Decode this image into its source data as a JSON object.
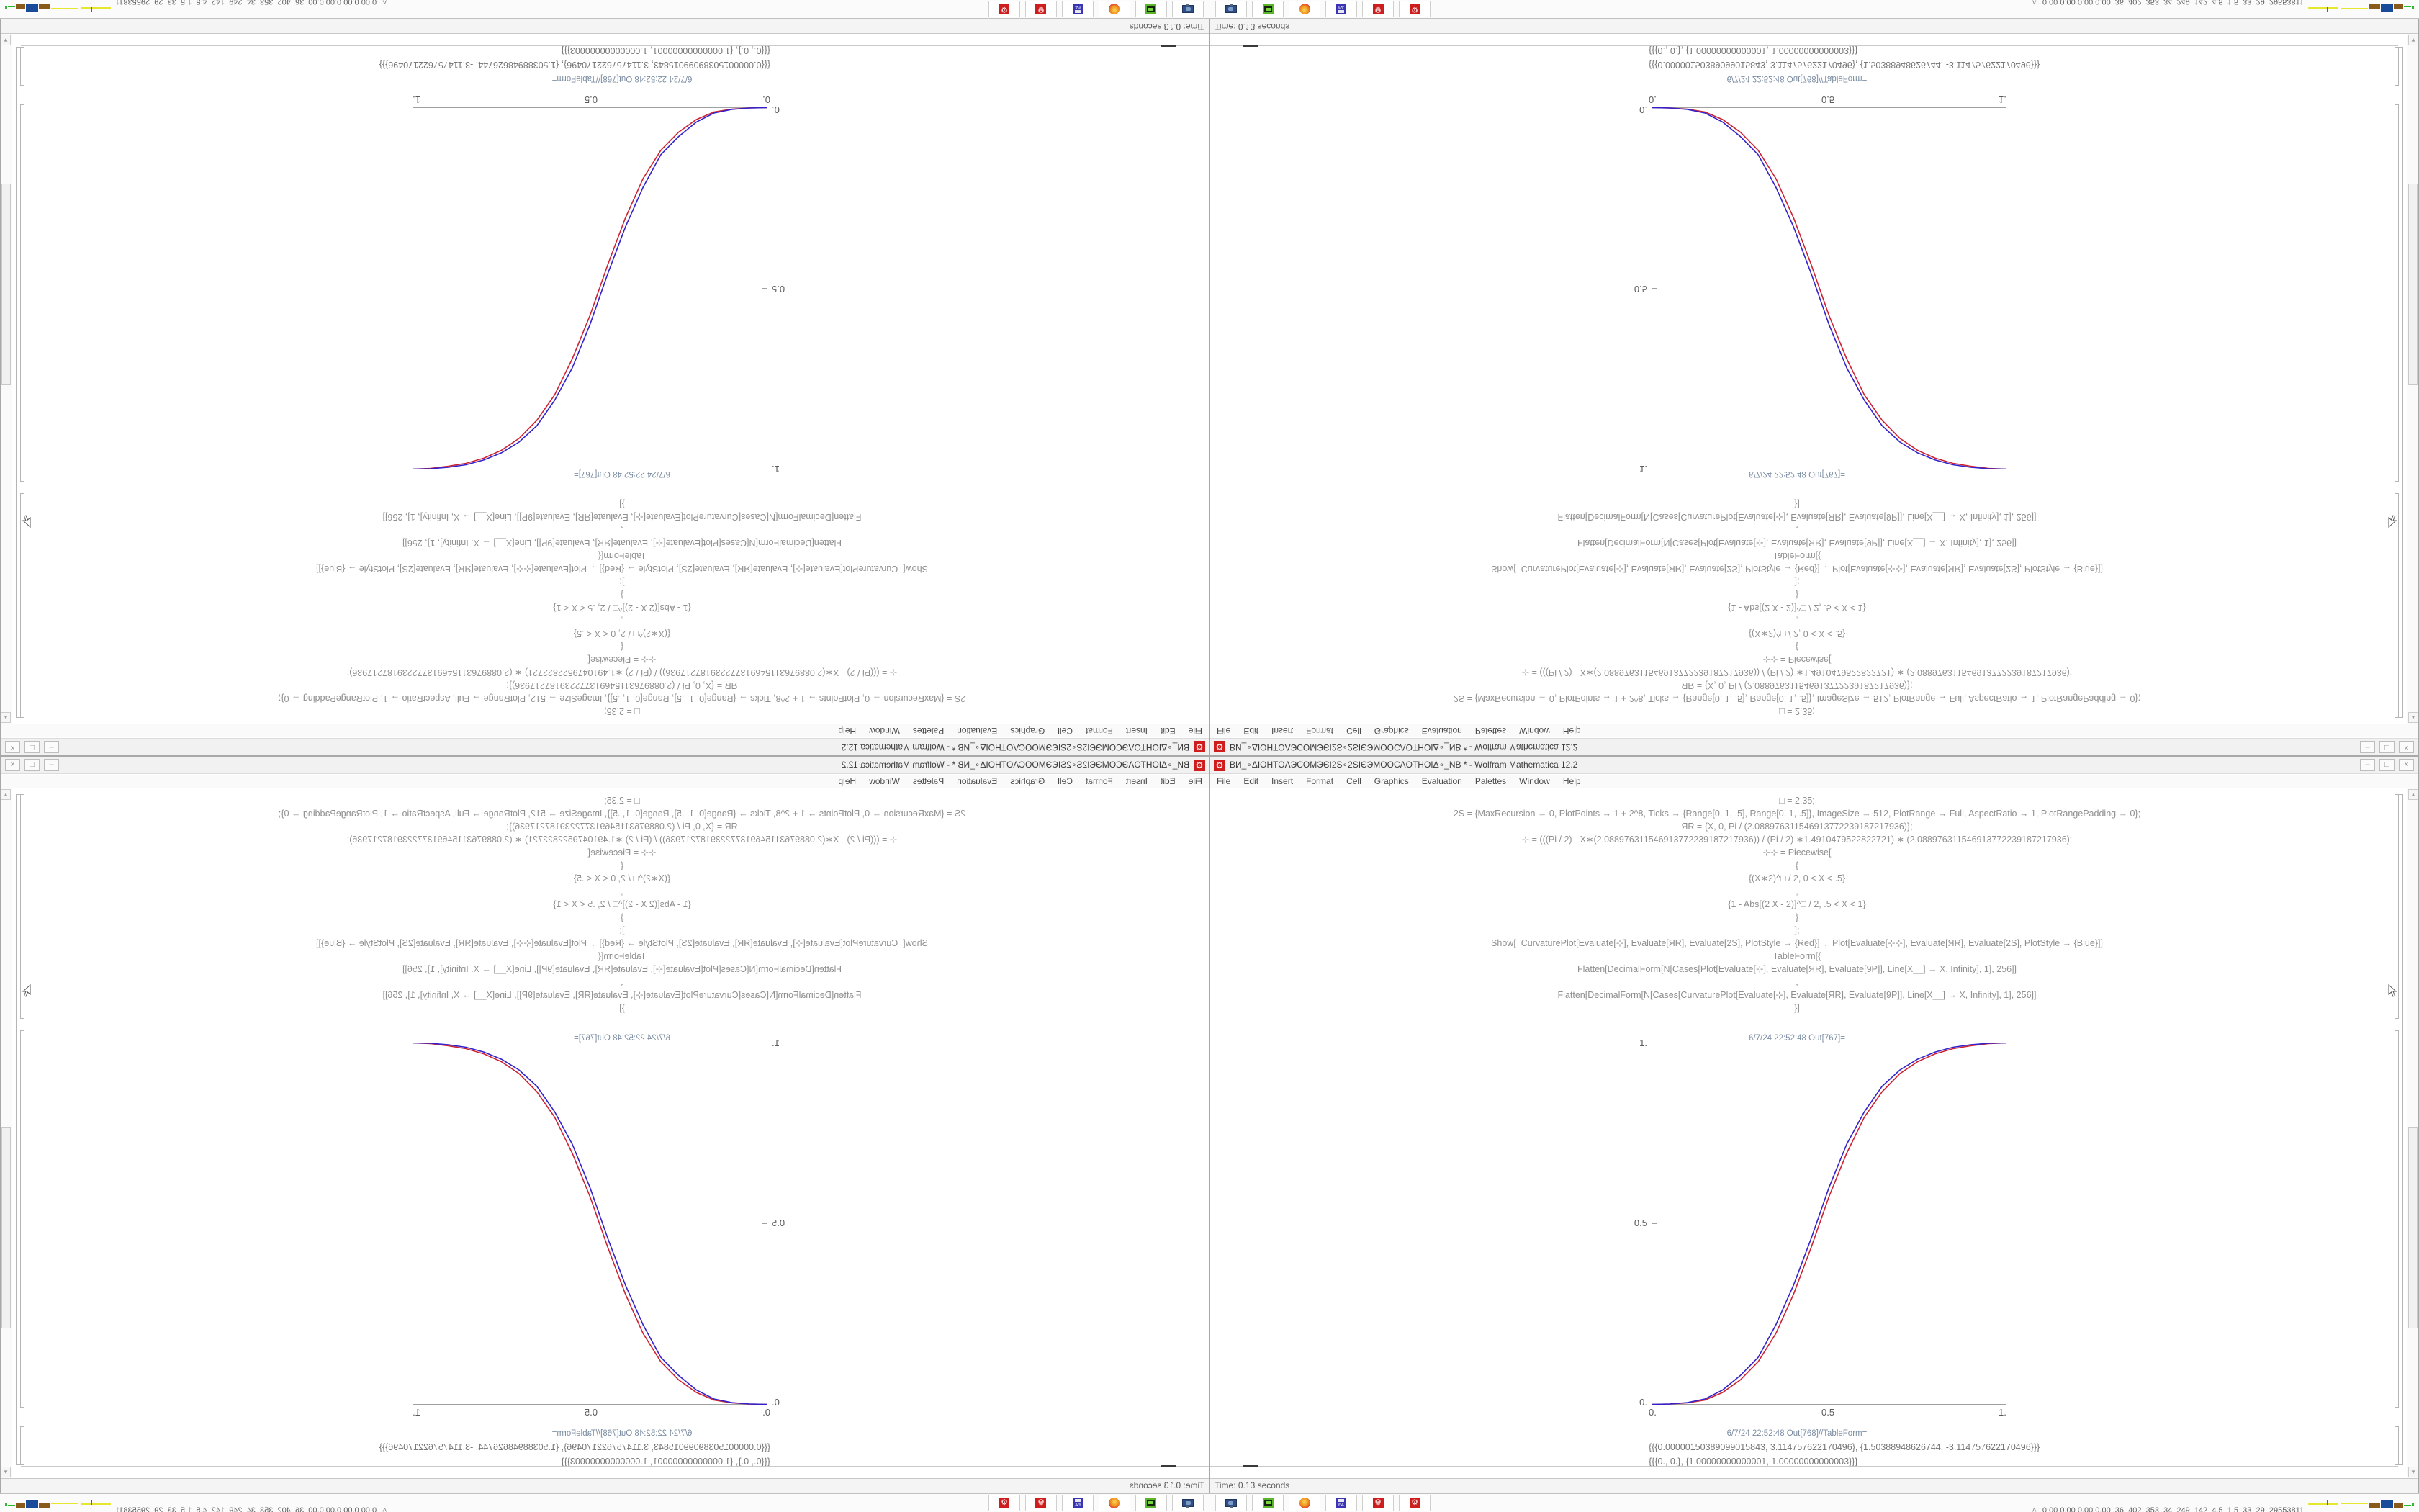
{
  "window": {
    "title": "ВИ_∘ΔIOHTOΛЭCOMЭЄI2S∘2SIЄЭMOOCΛOTHOIΔ∘_NB * - Wolfram Mathematica 12.2",
    "controls": {
      "minimize": "–",
      "maximize": "□",
      "close": "×"
    },
    "menu": [
      "File",
      "Edit",
      "Insert",
      "Format",
      "Cell",
      "Graphics",
      "Evaluation",
      "Palettes",
      "Window",
      "Help"
    ],
    "status": "Time: 0.13 seconds"
  },
  "notebook": {
    "code_lines": [
      "□ = 2.35;",
      "2S = {MaxRecursion → 0, PlotPoints → 1 + 2^8, Ticks → {Range[0, 1, .5], Range[0, 1, .5]}, ImageSize → 512, PlotRange → Full, AspectRatio → 1, PlotRangePadding → 0};",
      "ЯR = {X, 0, Pi / (2.088976311546913772239187217936)};",
      "⊹ = (((Pi / 2) - X∗(2.088976311546913772239187217936)) / (Pi / 2) ∗1.4910479522822721) ∗ (2.088976311546913772239187217936);",
      "⊹⊹ = Piecewise[",
      "{",
      "{(X∗2)^□ / 2, 0 < X < .5}",
      ",",
      "{1 - Abs[(2 X - 2)]^□ / 2, .5 < X < 1}",
      "}",
      "];",
      "Show[  CurvaturePlot[Evaluate[⊹], Evaluate[ЯR], Evaluate[2S], PlotStyle → {Red}]  ,  Plot[Evaluate[⊹⊹], Evaluate[ЯR], Evaluate[2S], PlotStyle → {Blue}]]",
      "TableForm[{",
      "Flatten[DecimalForm[N[Cases[Plot[Evaluate[⊹], Evaluate[ЯR], Evaluate[9P]], Line[X__] → X, Infinity], 1], 256]]",
      ",",
      "Flatten[DecimalForm[N[Cases[CurvaturePlot[Evaluate[⊹], Evaluate[ЯR], Evaluate[9P]], Line[X__] → X, Infinity], 1], 256]]",
      "}]"
    ],
    "out1_label": "6/7/24 22:52:48 Out[767]=",
    "out2_label": "6/7/24 22:52:48 Out[768]//TableForm=",
    "table_line1": "{{{0.00000150389099015843, 3.114757622170496}, {1.50388948626744, -3.114757622170496}}}",
    "table_line2": "{{{0., 0.}, {1.00000000000001, 1.00000000000003}}}"
  },
  "chart_data": {
    "type": "line",
    "title": "",
    "xlabel": "",
    "ylabel": "",
    "xlim": [
      0,
      1
    ],
    "ylim": [
      0,
      1
    ],
    "x_ticks": [
      "0.",
      "0.5",
      "1."
    ],
    "y_ticks": [
      "1.",
      "0.5",
      "0."
    ],
    "legend": "none",
    "grid": false,
    "x": [
      0,
      0.05,
      0.1,
      0.15,
      0.2,
      0.25,
      0.3,
      0.35,
      0.4,
      0.45,
      0.5,
      0.55,
      0.6,
      0.65,
      0.7,
      0.75,
      0.8,
      0.85,
      0.9,
      0.95,
      1
    ],
    "series": [
      {
        "name": "CurvaturePlot (Red)",
        "color": "#cc2233",
        "values": [
          0,
          0.001,
          0.004,
          0.012,
          0.033,
          0.068,
          0.118,
          0.196,
          0.305,
          0.435,
          0.575,
          0.695,
          0.795,
          0.865,
          0.915,
          0.948,
          0.97,
          0.984,
          0.992,
          0.998,
          1
        ]
      },
      {
        "name": "Piecewise plot (Blue)",
        "color": "#3322cc",
        "values": [
          0,
          0.001,
          0.005,
          0.015,
          0.04,
          0.08,
          0.13,
          0.22,
          0.33,
          0.46,
          0.6,
          0.72,
          0.81,
          0.88,
          0.925,
          0.955,
          0.975,
          0.988,
          0.995,
          0.999,
          1
        ]
      }
    ]
  },
  "panel": {
    "icons": [
      {
        "name": "screenshot-tool",
        "label": ""
      },
      {
        "name": "disk-monitor",
        "label": ""
      },
      {
        "name": "firefox",
        "label": ""
      },
      {
        "name": "floppy-64",
        "label": "64"
      },
      {
        "name": "red-gear",
        "label": ""
      },
      {
        "name": "red-gear-2",
        "label": ""
      }
    ],
    "status_caret": "˄",
    "status_text": "0.00 0.00 0.00 0.00  36  402  353  34  249  142  4.5  1.5  33  29  29553811"
  }
}
